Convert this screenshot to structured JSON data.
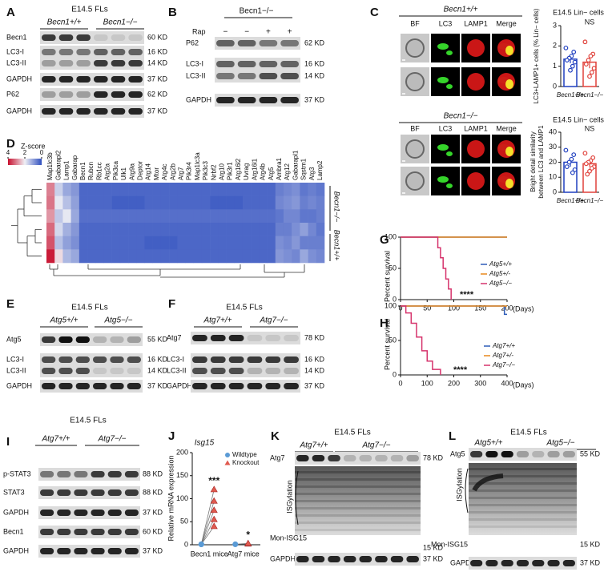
{
  "blots": {
    "A": {
      "letter": "A",
      "title": "E14.5 FLs",
      "groups": [
        "Becn1+/+",
        "Becn1−/−"
      ],
      "rows": [
        {
          "label": "Becn1",
          "size": "60 KD"
        },
        {
          "label": "LC3-I",
          "size": "16 KD"
        },
        {
          "label": "LC3-II",
          "size": "14 KD"
        },
        {
          "label": "GAPDH",
          "size": "37 KD"
        },
        {
          "label": "P62",
          "size": "62 KD"
        },
        {
          "label": "GAPDH",
          "size": "37 KD"
        }
      ]
    },
    "B": {
      "letter": "B",
      "title": "Becn1−/−",
      "treatment": "Rap",
      "lanes": [
        "−",
        "−",
        "+",
        "+"
      ],
      "rows": [
        {
          "label": "P62",
          "size": "62 KD"
        },
        {
          "label": "LC3-I",
          "size": "16 KD"
        },
        {
          "label": "LC3-II",
          "size": "14 KD"
        },
        {
          "label": "GAPDH",
          "size": "37 KD"
        }
      ]
    },
    "E": {
      "letter": "E",
      "title": "E14.5 FLs",
      "groups": [
        "Atg5+/+",
        "Atg5−/−"
      ],
      "rows": [
        {
          "label": "Atg5",
          "size": "55 KD"
        },
        {
          "label": "LC3-I",
          "size": "16 KD"
        },
        {
          "label": "LC3-II",
          "size": "14 KD"
        },
        {
          "label": "GAPDH",
          "size": "37 KD"
        }
      ]
    },
    "F": {
      "letter": "F",
      "title": "E14.5 FLs",
      "groups": [
        "Atg7+/+",
        "Atg7−/−"
      ],
      "rows": [
        {
          "label": "Atg7",
          "size": "78 KD"
        },
        {
          "label": "LC3-I",
          "size": "16 KD"
        },
        {
          "label": "LC3-II",
          "size": "14 KD"
        },
        {
          "label": "GAPDH",
          "size": "37 KD"
        }
      ]
    },
    "I": {
      "letter": "I",
      "title": "E14.5 FLs",
      "groups": [
        "Atg7+/+",
        "Atg7−/−"
      ],
      "rows": [
        {
          "label": "p-STAT3",
          "size": "88 KD"
        },
        {
          "label": "STAT3",
          "size": "88 KD"
        },
        {
          "label": "GAPDH",
          "size": "37 KD"
        },
        {
          "label": "Becn1",
          "size": "60 KD"
        },
        {
          "label": "GAPDH",
          "size": "37 KD"
        }
      ]
    },
    "K": {
      "letter": "K",
      "title": "E14.5 FLs",
      "groups": [
        "Atg7+/+",
        "Atg7−/−"
      ],
      "rows": [
        {
          "label": "Atg7",
          "size": "78 KD"
        },
        {
          "label": "GAPDH",
          "size": "37 KD"
        }
      ],
      "smear_label": "ISGylation",
      "mono_label": "Mon-ISG15",
      "mono_size": "15 KD"
    },
    "L": {
      "letter": "L",
      "title": "E14.5 FLs",
      "groups": [
        "Atg5+/+",
        "Atg5−/−"
      ],
      "rows": [
        {
          "label": "Atg5",
          "size": "55 KD"
        },
        {
          "label": "GAPDH",
          "size": "37 KD"
        }
      ],
      "smear_label": "ISGylation",
      "mono_label": "Mon-ISG15",
      "mono_size": "15 KD"
    }
  },
  "imaging": {
    "letter": "C",
    "groups": [
      {
        "title": "Becn1+/+",
        "channels": [
          "BF",
          "LC3",
          "LAMP1",
          "Merge"
        ]
      },
      {
        "title": "Becn1−/−",
        "channels": [
          "BF",
          "LC3",
          "LAMP1",
          "Merge"
        ]
      }
    ]
  },
  "chart_data": [
    {
      "type": "bar",
      "title": "E14.5 Lin− cells",
      "y_label": [
        "LC3+LAMP1+ cells (% Lin− cells)"
      ],
      "categories": [
        "Becn1+/+",
        "Becn1−/−"
      ],
      "colors": [
        "#1f3fbf",
        "#e0413a"
      ],
      "values": [
        1.35,
        1.2
      ],
      "errors": [
        0.2,
        0.3
      ],
      "points": [
        [
          1.9,
          1.7,
          1.5,
          1.4,
          1.3,
          1.2,
          1.0,
          0.8
        ],
        [
          2.2,
          1.6,
          1.5,
          1.3,
          1.1,
          0.9,
          0.7,
          0.5
        ]
      ],
      "ylim": [
        0,
        3
      ],
      "yticks": [
        0,
        1,
        2,
        3
      ],
      "annotation": "NS"
    },
    {
      "type": "bar",
      "title": "E14.5 Lin− cells",
      "y_label": [
        "Bright detail similarity",
        "between LC3 and LAMP1"
      ],
      "categories": [
        "Becn1+/+",
        "Becn1−/−"
      ],
      "colors": [
        "#1f3fbf",
        "#e0413a"
      ],
      "values": [
        20,
        19
      ],
      "errors": [
        3,
        2
      ],
      "points": [
        [
          28,
          25,
          22,
          20,
          17,
          15,
          13
        ],
        [
          26,
          23,
          21,
          20,
          19,
          17,
          16,
          14,
          12
        ]
      ],
      "ylim": [
        0,
        40
      ],
      "yticks": [
        0,
        10,
        20,
        30,
        40
      ],
      "annotation": "NS"
    },
    {
      "type": "heatmap",
      "letter": "D",
      "title": "Z-score",
      "zlim": [
        0,
        4
      ],
      "zticks": [
        4,
        2,
        0
      ],
      "columns": [
        "Map1lc3b",
        "Gabarapl2",
        "Lamp1",
        "Gabarap",
        "Becn1",
        "Rubcn",
        "Rb1cc",
        "Atg2a",
        "Pik3ca",
        "Ulk1",
        "Atg9a",
        "Deptor",
        "Atg14",
        "Mtor",
        "Atg4c",
        "Atg2b",
        "Atg7",
        "Pik3r4",
        "Map1lc3a",
        "Pik3c3",
        "Nrbf2",
        "Atg10",
        "Pik3r1",
        "Atg16l2",
        "Uvrag",
        "Atg16l1",
        "Atg4b",
        "Atg5",
        "Ambra1",
        "Atg12",
        "Gabarapl1",
        "Sqstm1",
        "Atg3",
        "Lamp2"
      ],
      "row_groups": [
        "Becn1−/−",
        "Becn1+/+"
      ],
      "values": [
        [
          3.0,
          1.6,
          1.1,
          0.9,
          0.3,
          0.3,
          0.3,
          0.3,
          0.3,
          0.3,
          0.3,
          0.3,
          0.3,
          0.3,
          0.3,
          0.3,
          0.3,
          0.3,
          0.3,
          0.3,
          0.3,
          0.3,
          0.3,
          0.3,
          0.3,
          0.3,
          0.3,
          0.3,
          0.6,
          0.7,
          0.8,
          0.5,
          0.6,
          0.5
        ],
        [
          3.1,
          1.9,
          1.4,
          1.0,
          0.3,
          0.3,
          0.3,
          0.3,
          0.2,
          0.2,
          0.2,
          0.2,
          0.3,
          0.3,
          0.3,
          0.3,
          0.3,
          0.3,
          0.3,
          0.3,
          0.2,
          0.2,
          0.2,
          0.2,
          0.3,
          0.3,
          0.3,
          0.3,
          0.7,
          0.8,
          0.9,
          0.6,
          0.7,
          0.6
        ],
        [
          2.8,
          1.5,
          1.9,
          1.1,
          0.4,
          0.4,
          0.4,
          0.4,
          0.4,
          0.4,
          0.4,
          0.4,
          0.4,
          0.4,
          0.4,
          0.4,
          0.4,
          0.4,
          0.4,
          0.4,
          0.4,
          0.4,
          0.4,
          0.4,
          0.4,
          0.4,
          0.4,
          0.4,
          0.5,
          0.7,
          0.7,
          0.5,
          0.5,
          0.6
        ],
        [
          3.2,
          1.7,
          1.2,
          0.9,
          0.3,
          0.3,
          0.3,
          0.3,
          0.3,
          0.3,
          0.3,
          0.3,
          0.3,
          0.3,
          0.3,
          0.3,
          0.3,
          0.3,
          0.3,
          0.3,
          0.3,
          0.3,
          0.3,
          0.3,
          0.3,
          0.3,
          0.3,
          0.3,
          0.6,
          0.6,
          0.8,
          1.0,
          0.7,
          0.5
        ],
        [
          3.4,
          1.4,
          1.0,
          0.8,
          0.3,
          0.3,
          0.3,
          0.3,
          0.3,
          0.3,
          0.3,
          0.3,
          0.2,
          0.2,
          0.2,
          0.2,
          0.3,
          0.3,
          0.3,
          0.3,
          0.3,
          0.3,
          0.3,
          0.3,
          0.3,
          0.3,
          0.3,
          0.3,
          0.8,
          0.7,
          0.9,
          0.6,
          0.6,
          0.6
        ],
        [
          3.9,
          2.2,
          1.3,
          1.1,
          0.3,
          0.3,
          0.3,
          0.3,
          0.3,
          0.3,
          0.3,
          0.3,
          0.3,
          0.3,
          0.3,
          0.3,
          0.3,
          0.3,
          0.3,
          0.3,
          0.3,
          0.3,
          0.3,
          0.3,
          0.3,
          0.3,
          0.3,
          0.3,
          0.9,
          0.8,
          0.7,
          1.1,
          0.8,
          0.7
        ]
      ]
    },
    {
      "type": "line",
      "letter": "G",
      "y_label": "Percent survival",
      "x_label": "(Days)",
      "xlim": [
        0,
        200
      ],
      "xticks": [
        0,
        50,
        100,
        150,
        200
      ],
      "ylim": [
        0,
        100
      ],
      "yticks": [
        0,
        50,
        100
      ],
      "annotation": "****",
      "series": [
        {
          "name": "Atg5+/+",
          "color": "#2e5cb8",
          "x": [
            0,
            200
          ],
          "values": [
            100,
            100
          ]
        },
        {
          "name": "Atg5+/-",
          "color": "#e8891c",
          "x": [
            0,
            200
          ],
          "values": [
            100,
            100
          ]
        },
        {
          "name": "Atg5−/−",
          "color": "#d6336c",
          "x": [
            0,
            70,
            70,
            75,
            75,
            80,
            80,
            85,
            85,
            90,
            90,
            95,
            95
          ],
          "values": [
            100,
            100,
            83,
            83,
            67,
            67,
            50,
            50,
            33,
            33,
            17,
            17,
            0
          ]
        }
      ]
    },
    {
      "type": "line",
      "letter": "H",
      "y_label": "Percent survival",
      "x_label": "(Days)",
      "xlim": [
        0,
        400
      ],
      "xticks": [
        0,
        100,
        200,
        300,
        400
      ],
      "ylim": [
        0,
        100
      ],
      "yticks": [
        0,
        50,
        100
      ],
      "annotation": "****",
      "series": [
        {
          "name": "Atg7+/+",
          "color": "#2e5cb8",
          "x": [
            0,
            390,
            390,
            400
          ],
          "values": [
            100,
            100,
            88,
            88
          ]
        },
        {
          "name": "Atg7+/-",
          "color": "#e8891c",
          "x": [
            0,
            400
          ],
          "values": [
            100,
            100
          ]
        },
        {
          "name": "Atg7−/−",
          "color": "#d6336c",
          "x": [
            0,
            20,
            20,
            40,
            40,
            60,
            60,
            80,
            80,
            100,
            100,
            120,
            120,
            150,
            150
          ],
          "values": [
            100,
            100,
            90,
            90,
            75,
            75,
            55,
            55,
            35,
            35,
            20,
            20,
            8,
            8,
            0
          ]
        }
      ]
    },
    {
      "type": "scatter",
      "letter": "J",
      "title": "Isg15",
      "y_label": "Relative mRNA expression",
      "categories": [
        "Becn1 mice",
        "Atg7 mice"
      ],
      "ylim": [
        0,
        200
      ],
      "yticks": [
        0,
        50,
        100,
        150,
        200
      ],
      "annotations": [
        "***",
        "*"
      ],
      "series": [
        {
          "name": "Wildtype",
          "color": "#5b9bd5",
          "values": [
            [
              1,
              1,
              1,
              1,
              1
            ],
            [
              1,
              1
            ]
          ]
        },
        {
          "name": "Knockout",
          "color": "#e05a4f",
          "values": [
            [
              120,
              95,
              75,
              55,
              40
            ],
            [
              2,
              3
            ]
          ]
        }
      ]
    }
  ]
}
